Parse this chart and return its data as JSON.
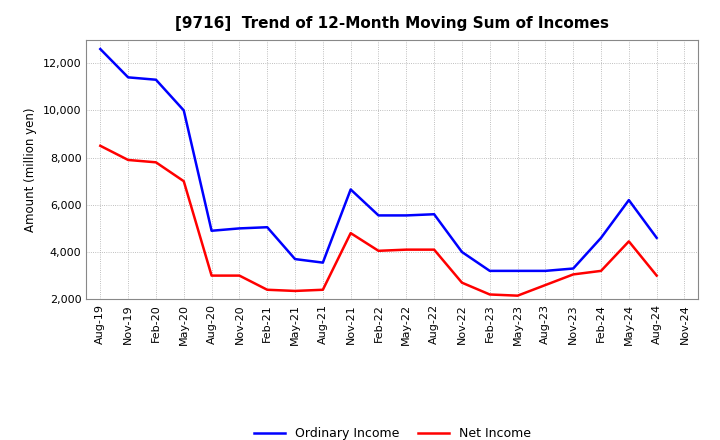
{
  "title": "[9716]  Trend of 12-Month Moving Sum of Incomes",
  "ylabel": "Amount (million yen)",
  "background_color": "#ffffff",
  "grid_color": "#aaaaaa",
  "xlabels": [
    "Aug-19",
    "Nov-19",
    "Feb-20",
    "May-20",
    "Aug-20",
    "Nov-20",
    "Feb-21",
    "May-21",
    "Aug-21",
    "Nov-21",
    "Feb-22",
    "May-22",
    "Aug-22",
    "Nov-22",
    "Feb-23",
    "May-23",
    "Aug-23",
    "Nov-23",
    "Feb-24",
    "May-24",
    "Aug-24",
    "Nov-24"
  ],
  "ordinary_income": [
    12600,
    11400,
    11300,
    10000,
    4900,
    5000,
    5050,
    3700,
    3550,
    6650,
    5550,
    5550,
    5600,
    4000,
    3200,
    3200,
    3200,
    3300,
    4600,
    6200,
    4600,
    null
  ],
  "net_income": [
    8500,
    7900,
    7800,
    7000,
    3000,
    3000,
    2400,
    2350,
    2400,
    4800,
    4050,
    4100,
    4100,
    2700,
    2200,
    2150,
    2600,
    3050,
    3200,
    4450,
    3000,
    null
  ],
  "ordinary_income_color": "#0000ff",
  "net_income_color": "#ff0000",
  "ylim": [
    2000,
    13000
  ],
  "yticks": [
    2000,
    4000,
    6000,
    8000,
    10000,
    12000
  ],
  "legend_labels": [
    "Ordinary Income",
    "Net Income"
  ],
  "line_width": 1.8,
  "title_fontsize": 11,
  "axis_fontsize": 8,
  "ylabel_fontsize": 8.5
}
